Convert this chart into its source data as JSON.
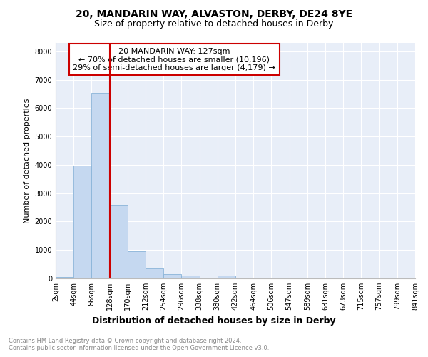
{
  "title1": "20, MANDARIN WAY, ALVASTON, DERBY, DE24 8YE",
  "title2": "Size of property relative to detached houses in Derby",
  "xlabel": "Distribution of detached houses by size in Derby",
  "ylabel": "Number of detached properties",
  "bin_labels": [
    "2sqm",
    "44sqm",
    "86sqm",
    "128sqm",
    "170sqm",
    "212sqm",
    "254sqm",
    "296sqm",
    "338sqm",
    "380sqm",
    "422sqm",
    "464sqm",
    "506sqm",
    "547sqm",
    "589sqm",
    "631sqm",
    "673sqm",
    "715sqm",
    "757sqm",
    "799sqm",
    "841sqm"
  ],
  "bar_heights": [
    50,
    3980,
    6530,
    2600,
    950,
    340,
    150,
    100,
    0,
    100,
    0,
    0,
    0,
    0,
    0,
    0,
    0,
    0,
    0,
    0
  ],
  "bar_color": "#c5d8f0",
  "bar_edge_color": "#8ab4d8",
  "vline_x_bin": 3,
  "vline_color": "#cc0000",
  "annotation_line1": "20 MANDARIN WAY: 127sqm",
  "annotation_line2": "← 70% of detached houses are smaller (10,196)",
  "annotation_line3": "29% of semi-detached houses are larger (4,179) →",
  "ylim": [
    0,
    8300
  ],
  "yticks": [
    0,
    1000,
    2000,
    3000,
    4000,
    5000,
    6000,
    7000,
    8000
  ],
  "bg_color": "#e8eef8",
  "plot_bg": "#e8eef8",
  "footer_text": "Contains HM Land Registry data © Crown copyright and database right 2024.\nContains public sector information licensed under the Open Government Licence v3.0.",
  "grid_color": "#ffffff",
  "title1_fontsize": 10,
  "title2_fontsize": 9,
  "ann_fontsize": 8,
  "ylabel_fontsize": 8,
  "xlabel_fontsize": 9,
  "tick_fontsize": 7
}
